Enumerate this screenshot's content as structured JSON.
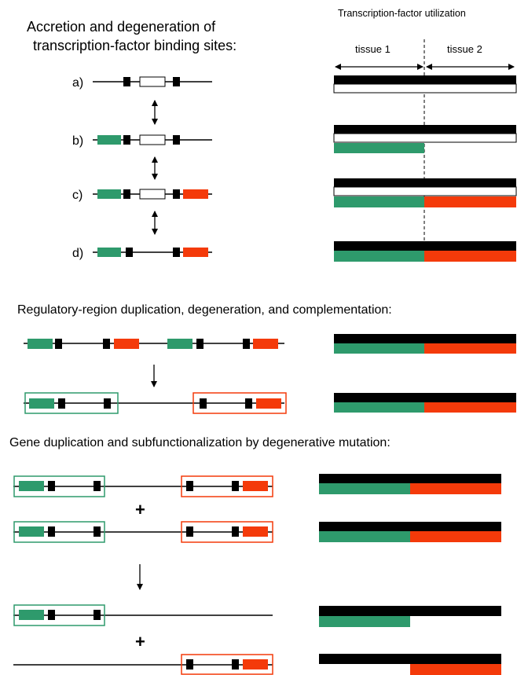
{
  "colors": {
    "green": "#2e9a6c",
    "red": "#f43a0a",
    "black": "#000000",
    "white": "#ffffff"
  },
  "section1": {
    "title_line1": "Accretion and degeneration of",
    "title_line2": "transcription-factor binding sites:",
    "right_title": "Transcription-factor utilization",
    "tissue1": "tissue 1",
    "tissue2": "tissue 2",
    "rows": [
      {
        "label": "a)"
      },
      {
        "label": "b)"
      },
      {
        "label": "c)"
      },
      {
        "label": "d)"
      }
    ]
  },
  "section2": {
    "title": "Regulatory-region duplication, degeneration, and complementation:"
  },
  "section3": {
    "title": "Gene duplication and subfunctionalization by degenerative mutation:",
    "plus": "+"
  }
}
